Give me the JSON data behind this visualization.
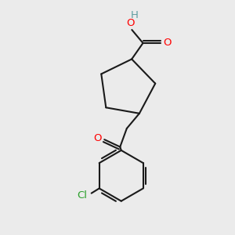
{
  "background_color": "#ebebeb",
  "bond_color": "#1a1a1a",
  "atom_colors": {
    "O": "#ff0000",
    "Cl": "#2ca02c",
    "H": "#5f9ea0",
    "C": "#1a1a1a"
  },
  "figsize": [
    3.0,
    3.0
  ],
  "dpi": 100,
  "lw": 1.5,
  "fontsize": 9.5
}
